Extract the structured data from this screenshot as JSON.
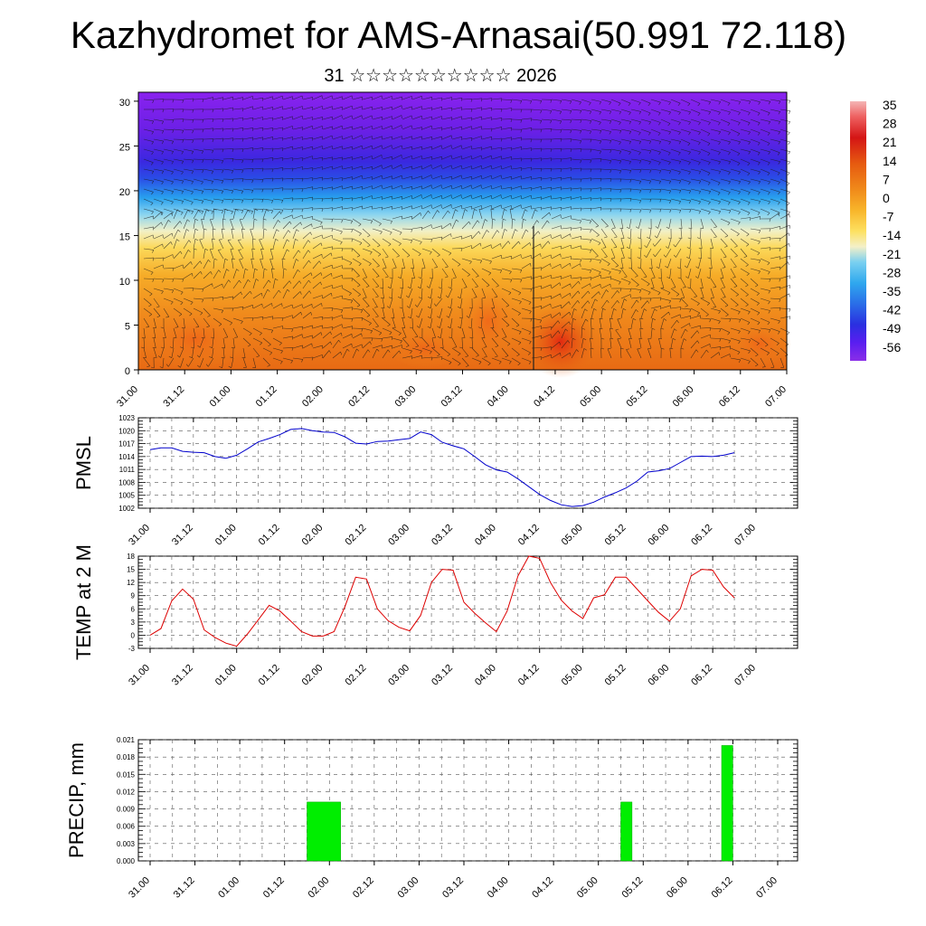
{
  "title": "Kazhydromet for AMS-Arnasai(50.991 72.118)",
  "subtitle": "31 ☆☆☆☆☆☆☆☆☆☆ 2026",
  "time_ticks": [
    "31.00",
    "31.12",
    "01.00",
    "01.12",
    "02.00",
    "02.12",
    "03.00",
    "03.12",
    "04.00",
    "04.12",
    "05.00",
    "05.12",
    "06.00",
    "06.12",
    "07.00"
  ],
  "colorbar": {
    "labels": [
      "35",
      "28",
      "21",
      "14",
      "7",
      "0",
      "-7",
      "-14",
      "-21",
      "-28",
      "-35",
      "-42",
      "-49",
      "-56"
    ],
    "colors": [
      "#f4b6b6",
      "#e83a3a",
      "#d41515",
      "#e65a10",
      "#f08a1a",
      "#f8b52a",
      "#fde060",
      "#f4f0c8",
      "#7ad0f0",
      "#2fa8ee",
      "#2a6ee8",
      "#2a30e0",
      "#5a1ef0",
      "#8a2ee8"
    ]
  },
  "chart_data": [
    {
      "type": "heatmap",
      "name": "temperature-wind-cross-section",
      "x": [
        0,
        12,
        24,
        36,
        48,
        60,
        72,
        84,
        96,
        108,
        120,
        132,
        144,
        156,
        168
      ],
      "xlabels": [
        "31.00",
        "31.12",
        "01.00",
        "01.12",
        "02.00",
        "02.12",
        "03.00",
        "03.12",
        "04.00",
        "04.12",
        "05.00",
        "05.12",
        "06.00",
        "06.12",
        "07.00"
      ],
      "ylim": [
        0,
        31
      ],
      "yticks": [
        0,
        5,
        10,
        15,
        20,
        25,
        30
      ],
      "ytick_labels": [
        "0",
        "5",
        "10",
        "15",
        "20",
        "25",
        "30"
      ],
      "zlim": [
        -56,
        35
      ],
      "description_units": "temperature C"
    },
    {
      "type": "line",
      "name": "PMSL",
      "ylabel": "PMSL",
      "ylim": [
        1002,
        1023
      ],
      "yticks": [
        1002,
        1005,
        1008,
        1011,
        1014,
        1017,
        1020,
        1023
      ],
      "ytick_labels": [
        "1002",
        "1005",
        "1008",
        "1011",
        "1014",
        "1017",
        "1020",
        "1023"
      ],
      "x": [
        0,
        3,
        6,
        9,
        12,
        15,
        18,
        21,
        24,
        27,
        30,
        33,
        36,
        39,
        42,
        45,
        48,
        51,
        54,
        57,
        60,
        63,
        66,
        69,
        72,
        75,
        78,
        81,
        84,
        87,
        90,
        93,
        96,
        99,
        102,
        105,
        108,
        111,
        114,
        117,
        120,
        123,
        126,
        129,
        132,
        135,
        138,
        141,
        144,
        147,
        150,
        153,
        156,
        159,
        162
      ],
      "values": [
        1015.6,
        1016.0,
        1016.0,
        1015.2,
        1015.0,
        1014.9,
        1014.0,
        1013.6,
        1014.3,
        1015.8,
        1017.4,
        1018.2,
        1019.1,
        1020.3,
        1020.5,
        1020.0,
        1019.7,
        1019.6,
        1018.6,
        1017.1,
        1016.9,
        1017.5,
        1017.6,
        1017.9,
        1018.2,
        1019.7,
        1019.1,
        1017.3,
        1016.5,
        1015.8,
        1014.0,
        1012.1,
        1010.9,
        1010.4,
        1008.8,
        1007.0,
        1005.2,
        1003.8,
        1002.8,
        1002.4,
        1002.6,
        1003.4,
        1004.6,
        1005.6,
        1006.7,
        1008.3,
        1010.4,
        1010.7,
        1011.2,
        1012.6,
        1014.0,
        1014.1,
        1014.0,
        1014.3,
        1014.9
      ]
    },
    {
      "type": "line",
      "name": "TEMP at 2 M",
      "ylabel": "TEMP at 2 M",
      "ylim": [
        -3,
        18
      ],
      "yticks": [
        -3,
        0,
        3,
        6,
        9,
        12,
        15,
        18
      ],
      "ytick_labels": [
        "-3",
        "0",
        "3",
        "6",
        "9",
        "12",
        "15",
        "18"
      ],
      "x": [
        0,
        3,
        6,
        9,
        12,
        15,
        18,
        21,
        24,
        27,
        30,
        33,
        36,
        39,
        42,
        45,
        48,
        51,
        54,
        57,
        60,
        63,
        66,
        69,
        72,
        75,
        78,
        81,
        84,
        87,
        90,
        93,
        96,
        99,
        102,
        105,
        108,
        111,
        114,
        117,
        120,
        123,
        126,
        129,
        132,
        135,
        138,
        141,
        144,
        147,
        150,
        153,
        156,
        159,
        162
      ],
      "values": [
        0.0,
        1.5,
        7.8,
        10.5,
        8.2,
        1.2,
        -0.5,
        -1.8,
        -2.5,
        0.3,
        3.5,
        6.8,
        5.5,
        3.2,
        0.8,
        -0.2,
        -0.2,
        0.8,
        6.5,
        13.2,
        12.8,
        6.0,
        3.3,
        1.8,
        1.0,
        4.5,
        12.0,
        15.0,
        14.8,
        7.5,
        5.0,
        2.8,
        0.8,
        5.5,
        13.5,
        18.0,
        17.5,
        12.0,
        8.0,
        5.5,
        3.8,
        8.5,
        9.2,
        13.2,
        13.2,
        10.5,
        7.8,
        5.2,
        3.2,
        6.0,
        13.5,
        15.0,
        14.8,
        11.0,
        8.5
      ]
    },
    {
      "type": "bar",
      "name": "PRECIP, mm",
      "ylabel": "PRECIP, mm",
      "ylim": [
        0,
        0.021
      ],
      "yticks": [
        0,
        0.003,
        0.006,
        0.009,
        0.012,
        0.015,
        0.018,
        0.021
      ],
      "ytick_labels": [
        "0.000",
        "0.003",
        "0.006",
        "0.009",
        "0.012",
        "0.015",
        "0.018",
        "0.021"
      ],
      "bars": [
        {
          "x0": 42,
          "x1": 51,
          "value": 0.0102
        },
        {
          "x0": 126,
          "x1": 129,
          "value": 0.0102
        },
        {
          "x0": 153,
          "x1": 156,
          "value": 0.02
        }
      ],
      "bar_color": "#00ee00"
    }
  ]
}
